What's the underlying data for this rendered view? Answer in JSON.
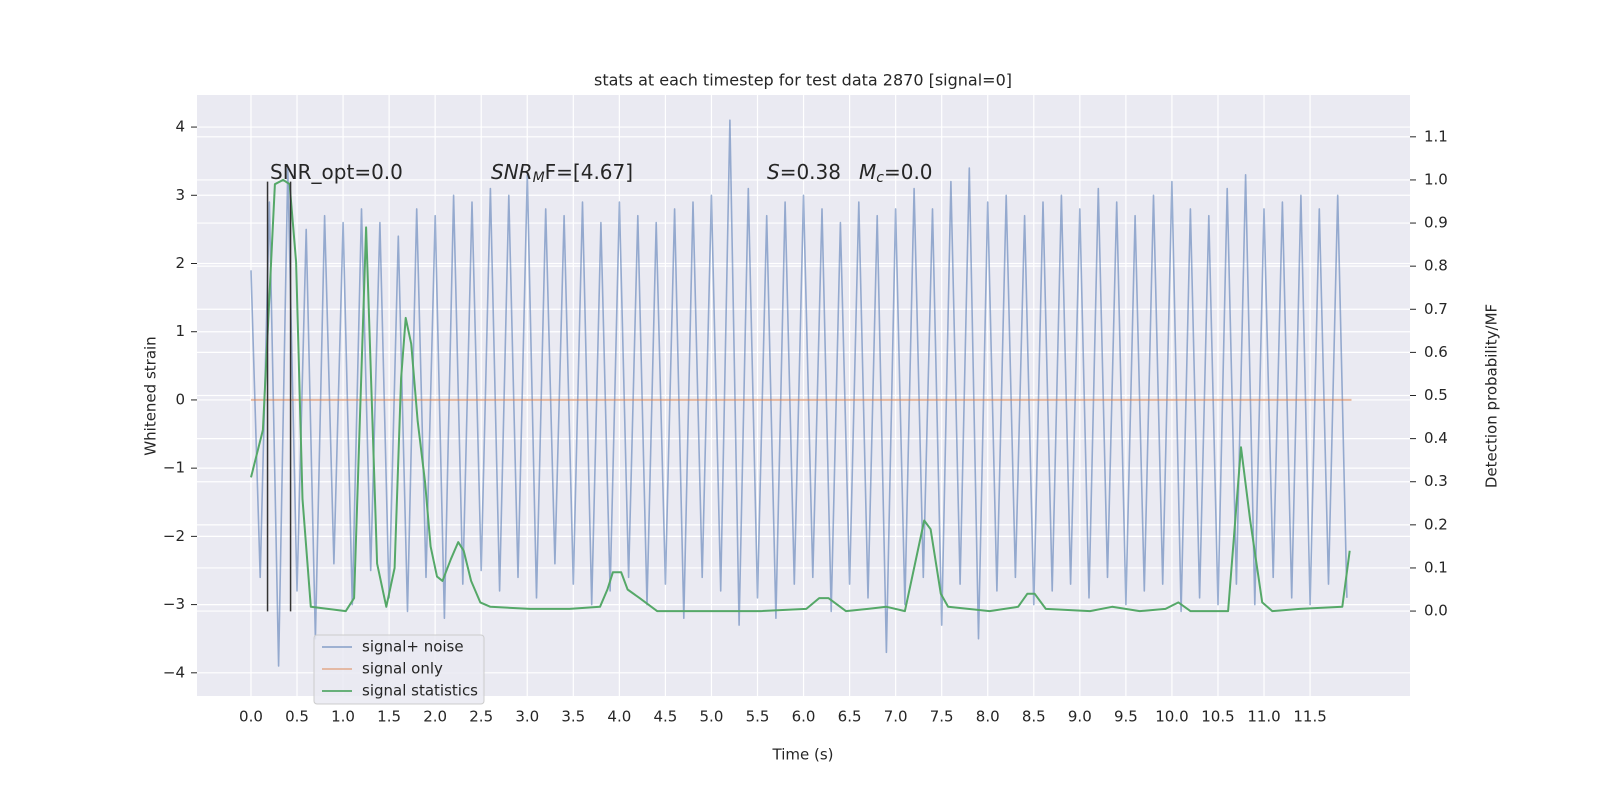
{
  "chart_data": {
    "type": "line",
    "title": "stats at each timestep for test data 2870 [signal=0]",
    "xlabel": "Time (s)",
    "ylabel": "Whitened strain",
    "y2label": "Detection probability/MF",
    "xlim": [
      -0.586,
      12.585
    ],
    "ylim": [
      -4.34,
      4.47
    ],
    "y2lim": [
      -0.197,
      1.197
    ],
    "xticks": [
      {
        "value": 0,
        "label": "0.0"
      },
      {
        "value": 0.5,
        "label": "0.5"
      },
      {
        "value": 1,
        "label": "1.0"
      },
      {
        "value": 1.5,
        "label": "1.5"
      },
      {
        "value": 2,
        "label": "2.0"
      },
      {
        "value": 2.5,
        "label": "2.5"
      },
      {
        "value": 3,
        "label": "3.0"
      },
      {
        "value": 3.5,
        "label": "3.5"
      },
      {
        "value": 4,
        "label": "4.0"
      },
      {
        "value": 4.5,
        "label": "4.5"
      },
      {
        "value": 5,
        "label": "5.0"
      },
      {
        "value": 5.5,
        "label": "5.5"
      },
      {
        "value": 6,
        "label": "6.0"
      },
      {
        "value": 6.5,
        "label": "6.5"
      },
      {
        "value": 7,
        "label": "7.0"
      },
      {
        "value": 7.5,
        "label": "7.5"
      },
      {
        "value": 8,
        "label": "8.0"
      },
      {
        "value": 8.5,
        "label": "8.5"
      },
      {
        "value": 9,
        "label": "9.0"
      },
      {
        "value": 9.5,
        "label": "9.5"
      },
      {
        "value": 10,
        "label": "10.0"
      },
      {
        "value": 10.5,
        "label": "10.5"
      },
      {
        "value": 11,
        "label": "11.0"
      },
      {
        "value": 11.5,
        "label": "11.5"
      }
    ],
    "yticks": [
      {
        "value": -4,
        "label": "−4"
      },
      {
        "value": -3,
        "label": "−3"
      },
      {
        "value": -2,
        "label": "−2"
      },
      {
        "value": -1,
        "label": "−1"
      },
      0,
      1,
      2,
      3,
      4
    ],
    "y2ticks": [
      {
        "value": 0,
        "label": "0.0"
      },
      {
        "value": 0.1,
        "label": "0.1"
      },
      {
        "value": 0.2,
        "label": "0.2"
      },
      {
        "value": 0.3,
        "label": "0.3"
      },
      {
        "value": 0.4,
        "label": "0.4"
      },
      {
        "value": 0.5,
        "label": "0.5"
      },
      {
        "value": 0.6,
        "label": "0.6"
      },
      {
        "value": 0.7,
        "label": "0.7"
      },
      {
        "value": 0.8,
        "label": "0.8"
      },
      {
        "value": 0.9,
        "label": "0.9"
      },
      {
        "value": 1,
        "label": "1.0"
      },
      {
        "value": 1.1,
        "label": "1.1"
      }
    ],
    "grid": true,
    "legend": "lower left",
    "annotations": [
      {
        "parts": [
          {
            "text": "SNR_opt=0.0"
          }
        ]
      },
      {
        "parts": [
          {
            "text": "SNR",
            "italic": true
          },
          {
            "text": "M",
            "italic": true,
            "sub": true
          },
          {
            "text": "F=[4.67]"
          }
        ]
      },
      {
        "parts": [
          {
            "text": "S",
            "italic": true
          },
          {
            "text": "=0.38"
          }
        ]
      },
      {
        "parts": [
          {
            "text": "M",
            "italic": true
          },
          {
            "text": "c",
            "italic": true,
            "sub": true
          },
          {
            "text": "=0.0"
          }
        ]
      }
    ],
    "vlines": {
      "x": [
        0.18,
        0.43
      ],
      "ymin": -3.1,
      "ymax": 3.2,
      "color": "#333333"
    },
    "series": [
      {
        "name": "signal+ noise",
        "color": "#4c72b0",
        "x": [
          0,
          0.1,
          0.2,
          0.3,
          0.4,
          0.5,
          0.6,
          0.7,
          0.8,
          0.9,
          1,
          1.1,
          1.2,
          1.3,
          1.4,
          1.5,
          1.6,
          1.7,
          1.8,
          1.9,
          2,
          2.1,
          2.2,
          2.3,
          2.4,
          2.5,
          2.6,
          2.7,
          2.8,
          2.9,
          3,
          3.1,
          3.2,
          3.3,
          3.4,
          3.5,
          3.6,
          3.7,
          3.8,
          3.9,
          4,
          4.1,
          4.2,
          4.3,
          4.4,
          4.5,
          4.6,
          4.7,
          4.8,
          4.9,
          5,
          5.1,
          5.2,
          5.3,
          5.4,
          5.5,
          5.6,
          5.7,
          5.8,
          5.9,
          6,
          6.1,
          6.2,
          6.3,
          6.4,
          6.5,
          6.6,
          6.7,
          6.8,
          6.9,
          7,
          7.1,
          7.2,
          7.3,
          7.4,
          7.5,
          7.6,
          7.7,
          7.8,
          7.9,
          8,
          8.1,
          8.2,
          8.3,
          8.4,
          8.5,
          8.6,
          8.7,
          8.8,
          8.9,
          9,
          9.1,
          9.2,
          9.3,
          9.4,
          9.5,
          9.6,
          9.7,
          9.8,
          9.9,
          10,
          10.1,
          10.2,
          10.3,
          10.4,
          10.5,
          10.6,
          10.7,
          10.8,
          10.9,
          11,
          11.1,
          11.2,
          11.3,
          11.4,
          11.5,
          11.6,
          11.7,
          11.8,
          11.9
        ],
        "values": [
          1.9,
          -2.6,
          2.9,
          -3.9,
          3.4,
          -2.8,
          2.5,
          -3.5,
          2.7,
          -2.4,
          2.6,
          -3.0,
          2.8,
          -2.5,
          2.6,
          -2.9,
          2.4,
          -3.1,
          2.8,
          -2.6,
          2.7,
          -3.2,
          3.0,
          -2.7,
          2.9,
          -2.5,
          3.1,
          -2.8,
          3.0,
          -2.6,
          3.3,
          -2.9,
          2.8,
          -2.4,
          2.7,
          -2.7,
          2.9,
          -3.0,
          2.6,
          -2.8,
          2.9,
          -2.6,
          2.7,
          -3.0,
          2.6,
          -2.7,
          2.8,
          -3.2,
          2.9,
          -2.6,
          3.0,
          -2.8,
          4.1,
          -3.3,
          3.1,
          -2.9,
          2.7,
          -3.2,
          2.9,
          -2.7,
          3.0,
          -2.6,
          2.8,
          -3.1,
          2.6,
          -2.7,
          2.9,
          -2.9,
          2.7,
          -3.7,
          2.8,
          -3.0,
          3.1,
          -2.6,
          2.8,
          -3.3,
          3.2,
          -2.7,
          3.4,
          -3.5,
          2.9,
          -2.8,
          3.0,
          -2.6,
          2.7,
          -3.0,
          2.9,
          -2.8,
          3.0,
          -2.7,
          2.8,
          -2.9,
          3.1,
          -2.6,
          2.9,
          -3.0,
          2.7,
          -2.8,
          3.0,
          -2.7,
          3.2,
          -3.1,
          2.8,
          -2.9,
          2.7,
          -3.0,
          3.1,
          -2.7,
          3.3,
          -3.0,
          2.8,
          -2.6,
          2.9,
          -2.9,
          3.0,
          -3.0,
          2.8,
          -2.7,
          3.0,
          -2.9
        ]
      },
      {
        "name": "signal only",
        "color": "#dd8452",
        "x": [
          0,
          11.95
        ],
        "values": [
          0,
          0
        ]
      },
      {
        "name": "signal statistics",
        "color": "#55a868",
        "axis": "y2",
        "x": [
          0,
          0.13,
          0.26,
          0.35,
          0.42,
          0.49,
          0.56,
          0.65,
          1.03,
          1.12,
          1.25,
          1.37,
          1.47,
          1.56,
          1.63,
          1.68,
          1.74,
          1.81,
          1.89,
          1.95,
          2.02,
          2.08,
          2.17,
          2.25,
          2.31,
          2.39,
          2.49,
          2.6,
          3.03,
          3.46,
          3.79,
          3.87,
          3.93,
          4.02,
          4.09,
          4.22,
          4.41,
          4.88,
          5.53,
          6.03,
          6.17,
          6.27,
          6.46,
          6.7,
          6.9,
          7.1,
          7.2,
          7.31,
          7.38,
          7.49,
          7.57,
          8.02,
          8.33,
          8.43,
          8.51,
          8.63,
          9.11,
          9.35,
          9.65,
          9.93,
          10.07,
          10.2,
          10.61,
          10.75,
          10.85,
          10.98,
          11.09,
          11.39,
          11.85,
          11.93
        ],
        "values": [
          0.31,
          0.42,
          0.99,
          1.0,
          0.99,
          0.81,
          0.26,
          0.01,
          0.0,
          0.03,
          0.89,
          0.11,
          0.01,
          0.1,
          0.54,
          0.68,
          0.62,
          0.44,
          0.3,
          0.15,
          0.08,
          0.07,
          0.12,
          0.16,
          0.14,
          0.07,
          0.02,
          0.01,
          0.005,
          0.005,
          0.01,
          0.05,
          0.09,
          0.09,
          0.05,
          0.03,
          0.0,
          0.0,
          0.0,
          0.005,
          0.03,
          0.03,
          0.0,
          0.005,
          0.01,
          0.0,
          0.1,
          0.21,
          0.19,
          0.04,
          0.01,
          0.0,
          0.01,
          0.04,
          0.04,
          0.005,
          0.0,
          0.01,
          0.0,
          0.005,
          0.02,
          0.0,
          0.0,
          0.38,
          0.21,
          0.02,
          0.0,
          0.005,
          0.01,
          0.14
        ]
      }
    ]
  }
}
